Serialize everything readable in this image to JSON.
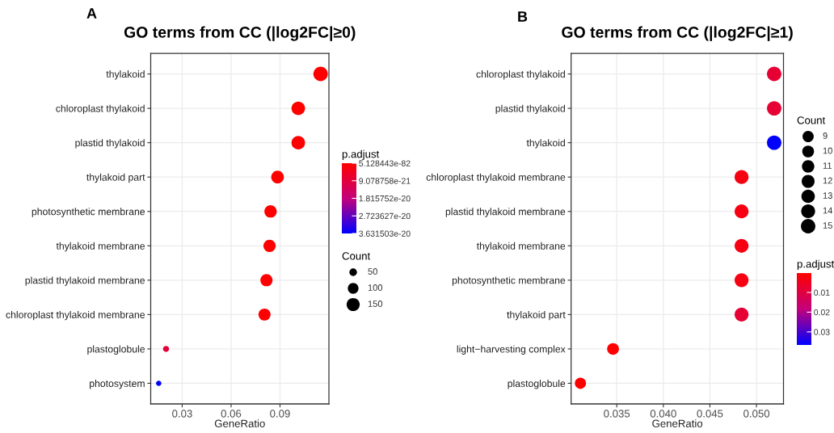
{
  "chart_data": [
    {
      "type": "bubble",
      "orientation": "horizontal",
      "title": "GO terms from CC (|log2FC|≥0)",
      "annotations": [
        "A"
      ],
      "categories": [
        "thylakoid",
        "chloroplast thylakoid",
        "plastid thylakoid",
        "thylakoid part",
        "photosynthetic membrane",
        "thylakoid membrane",
        "plastid thylakoid membrane",
        "chloroplast thylakoid membrane",
        "plastoglobule",
        "photosystem"
      ],
      "values": [
        0.1149,
        0.1012,
        0.1012,
        0.0885,
        0.0842,
        0.0836,
        0.0817,
        0.0805,
        0.0201,
        0.0156
      ],
      "sizes": [
        181,
        160,
        160,
        140,
        133,
        132,
        129,
        127,
        32,
        25
      ],
      "size_legend": [
        50,
        100,
        150
      ],
      "legend_title": "Count",
      "cvalues": [
        5.128443e-82,
        1e-60,
        1e-60,
        1e-45,
        1e-40,
        1e-40,
        1e-38,
        1e-38,
        8e-21,
        3.631503e-20
      ],
      "clabel": "p.adjust",
      "clim": [
        5.128443e-82,
        3.631503e-20
      ],
      "cticks": [
        5.128443e-82,
        9.078758e-21,
        1.815752e-20,
        2.723627e-20,
        3.631503e-20
      ],
      "xlabel": "GeneRatio",
      "xlim": [
        0.0107,
        0.12
      ],
      "xticks": [
        0.03,
        0.06,
        0.09
      ],
      "grid": true
    },
    {
      "type": "bubble",
      "orientation": "horizontal",
      "title": "GO terms from CC (|log2FC|≥1)",
      "annotations": [
        "B"
      ],
      "categories": [
        "chloroplast thylakoid",
        "plastid thylakoid",
        "thylakoid",
        "chloroplast thylakoid membrane",
        "plastid thylakoid membrane",
        "thylakoid membrane",
        "photosynthetic membrane",
        "thylakoid part",
        "light−harvesting complex",
        "plastoglobule"
      ],
      "values": [
        0.0519,
        0.0519,
        0.0519,
        0.0484,
        0.0484,
        0.0484,
        0.0484,
        0.0484,
        0.0346,
        0.0311
      ],
      "sizes": [
        15,
        15,
        15,
        14,
        14,
        14,
        14,
        14,
        10,
        9
      ],
      "size_legend": [
        9,
        10,
        11,
        12,
        13,
        14,
        15
      ],
      "legend_title": "Count",
      "cvalues": [
        0.008,
        0.008,
        0.0366,
        0.003,
        0.003,
        0.003,
        0.003,
        0.008,
        0.0002,
        0.0002
      ],
      "clabel": "p.adjust",
      "clim": [
        0.0002,
        0.0366
      ],
      "cticks": [
        0.01,
        0.02,
        0.03
      ],
      "xlabel": "GeneRatio",
      "xlim": [
        0.0301,
        0.0529
      ],
      "xticks": [
        {
          "value": 0.035,
          "label": "0.035"
        },
        {
          "value": 0.04,
          "label": "0.040"
        },
        {
          "value": 0.045,
          "label": "0.045"
        },
        {
          "value": 0.05,
          "label": "0.050"
        }
      ],
      "grid": true
    }
  ]
}
